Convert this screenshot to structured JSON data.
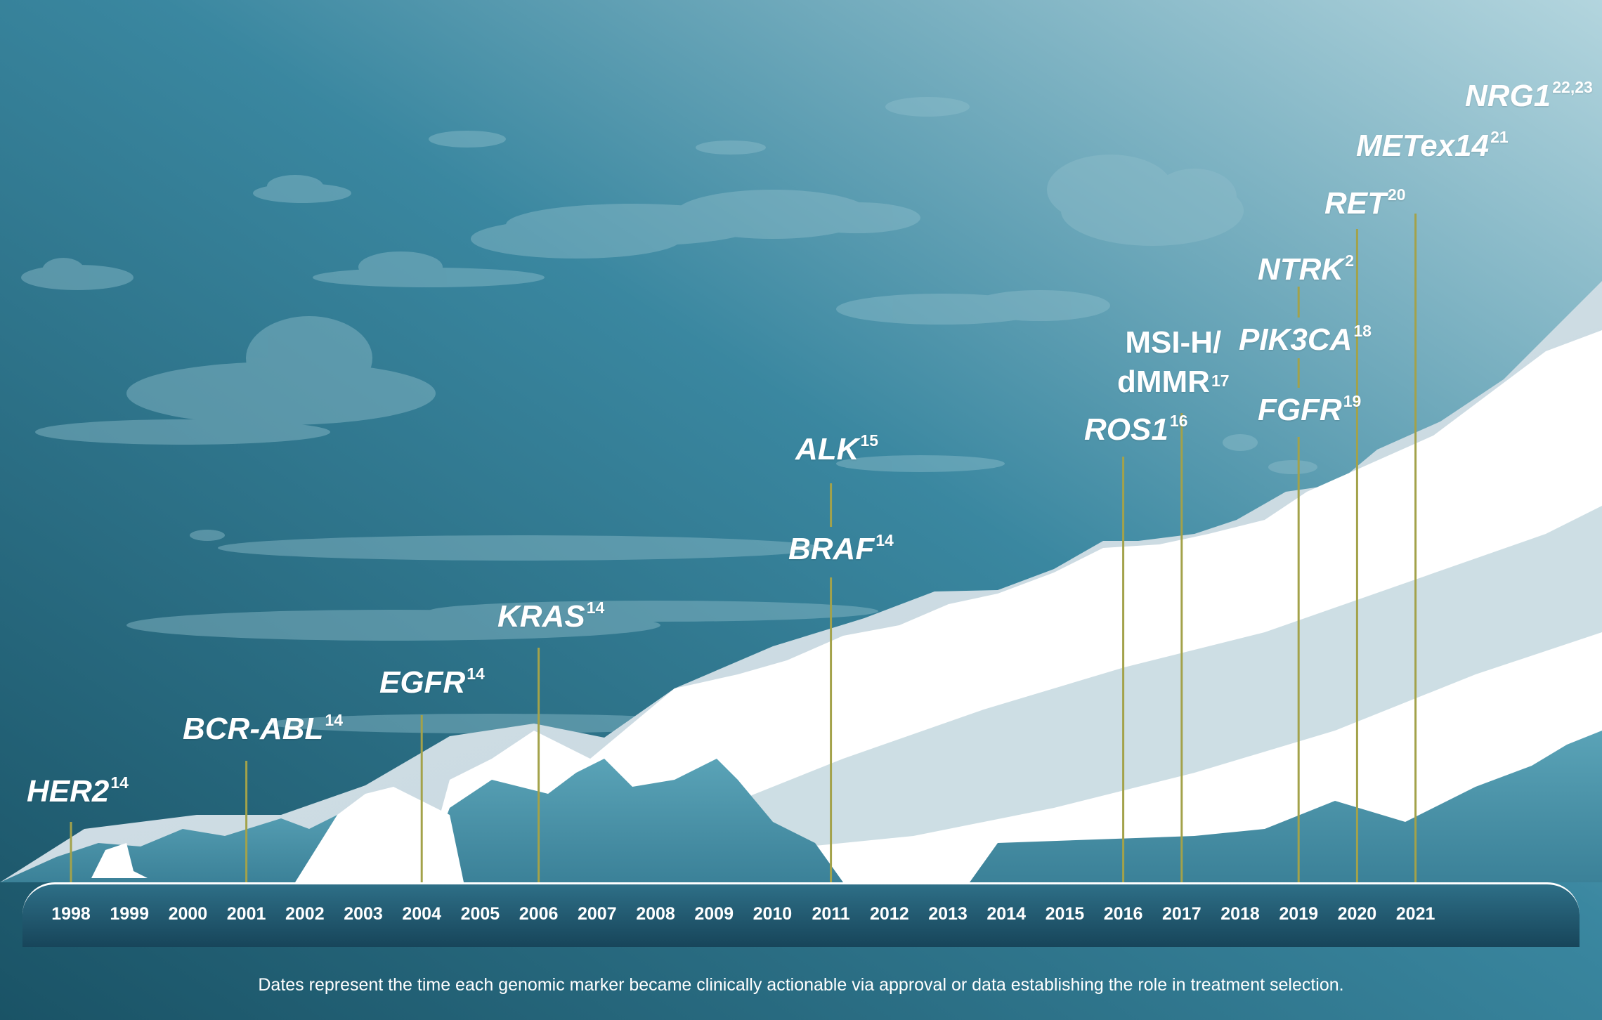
{
  "timeline": {
    "years": [
      "1998",
      "1999",
      "2000",
      "2001",
      "2002",
      "2003",
      "2004",
      "2005",
      "2006",
      "2007",
      "2008",
      "2009",
      "2010",
      "2011",
      "2012",
      "2013",
      "2014",
      "2015",
      "2016",
      "2017",
      "2018",
      "2019",
      "2020",
      "2021"
    ]
  },
  "markers": [
    {
      "id": "her2",
      "name": "HER2",
      "ref": "14",
      "year": "1998",
      "italic": true
    },
    {
      "id": "bcr-abl",
      "name": "BCR-ABL",
      "ref": "14",
      "year": "2001",
      "italic": true
    },
    {
      "id": "egfr",
      "name": "EGFR",
      "ref": "14",
      "year": "2004",
      "italic": true
    },
    {
      "id": "kras",
      "name": "KRAS",
      "ref": "14",
      "year": "2006",
      "italic": true
    },
    {
      "id": "braf",
      "name": "BRAF",
      "ref": "14",
      "year": "2011",
      "italic": true
    },
    {
      "id": "alk",
      "name": "ALK",
      "ref": "15",
      "year": "2011",
      "italic": true
    },
    {
      "id": "ros1",
      "name": "ROS1",
      "ref": "16",
      "year": "2016",
      "italic": true
    },
    {
      "id": "msi-h",
      "name": "MSI-H/ dMMR",
      "ref": "17",
      "year": "2017",
      "italic": false
    },
    {
      "id": "fgfr",
      "name": "FGFR",
      "ref": "19",
      "year": "2019",
      "italic": true
    },
    {
      "id": "pik3ca",
      "name": "PIK3CA",
      "ref": "18",
      "year": "2019",
      "italic": true
    },
    {
      "id": "ntrk",
      "name": "NTRK",
      "ref": "2",
      "year": "2019",
      "italic": true
    },
    {
      "id": "ret",
      "name": "RET",
      "ref": "20",
      "year": "2020",
      "italic": true
    },
    {
      "id": "metex14",
      "name": "METex14",
      "ref": "21",
      "year": "2021",
      "italic": true
    },
    {
      "id": "nrg1",
      "name": "NRG1",
      "ref": "22,23",
      "year": "",
      "italic": true
    }
  ],
  "caption": "Dates represent the time each genomic marker became clinically actionable via approval or data establishing the role in treatment selection.",
  "colors": {
    "sky_dark": "#1c5569",
    "sky_light": "#a9cdd8",
    "snow": "#ffffff",
    "marker_line": "#a3a24a",
    "bar": "#1b4d62"
  }
}
